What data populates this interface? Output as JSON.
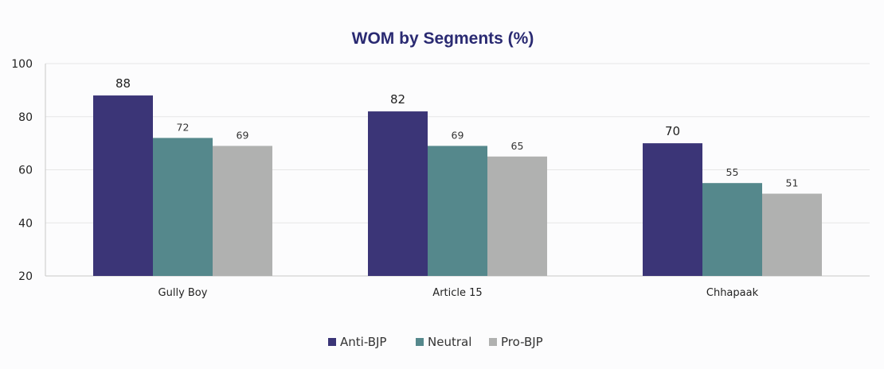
{
  "chart_data": {
    "type": "bar",
    "title": "WOM by Segments (%)",
    "xlabel": "",
    "ylabel": "",
    "categories": [
      "Gully Boy",
      "Article 15",
      "Chhapaak"
    ],
    "series": [
      {
        "name": "Anti-BJP",
        "values": [
          88,
          82,
          70
        ],
        "color": "#3b3577"
      },
      {
        "name": "Neutral",
        "values": [
          72,
          69,
          55
        ],
        "color": "#55888c"
      },
      {
        "name": "Pro-BJP",
        "values": [
          69,
          65,
          51
        ],
        "color": "#b0b1b0"
      }
    ],
    "ylim": [
      20,
      100
    ],
    "yticks": [
      20,
      40,
      60,
      80,
      100
    ],
    "grid": true,
    "legend_position": "bottom",
    "title_color": "#2a2a72"
  }
}
